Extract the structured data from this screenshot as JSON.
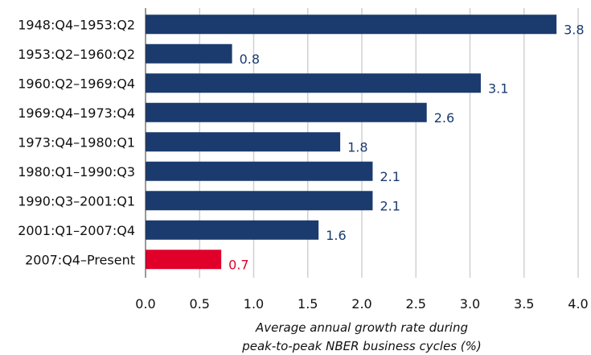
{
  "chart_data": {
    "type": "bar",
    "orientation": "horizontal",
    "categories": [
      "1948:Q4–1953:Q2",
      "1953:Q2–1960:Q2",
      "1960:Q2–1969:Q4",
      "1969:Q4–1973:Q4",
      "1973:Q4–1980:Q1",
      "1980:Q1–1990:Q3",
      "1990:Q3–2001:Q1",
      "2001:Q1–2007:Q4",
      "2007:Q4–Present"
    ],
    "values": [
      3.8,
      0.8,
      3.1,
      2.6,
      1.8,
      2.1,
      2.1,
      1.6,
      0.7
    ],
    "value_labels": [
      "3.8",
      "0.8",
      "3.1",
      "2.6",
      "1.8",
      "2.1",
      "2.1",
      "1.6",
      "0.7"
    ],
    "bar_colors": [
      "#1b3b6f",
      "#1b3b6f",
      "#1b3b6f",
      "#1b3b6f",
      "#1b3b6f",
      "#1b3b6f",
      "#1b3b6f",
      "#1b3b6f",
      "#e0002a"
    ],
    "label_colors": [
      "#1b3b6f",
      "#1b3b6f",
      "#1b3b6f",
      "#1b3b6f",
      "#1b3b6f",
      "#1b3b6f",
      "#1b3b6f",
      "#1b3b6f",
      "#e0002a"
    ],
    "xlim": [
      0,
      4.0
    ],
    "xticks": [
      "0.0",
      "0.5",
      "1.0",
      "1.5",
      "2.0",
      "2.5",
      "3.0",
      "3.5",
      "4.0"
    ],
    "xlabel_lines": [
      "Average annual growth rate during",
      "peak-to-peak NBER business cycles (%)"
    ],
    "grid": true
  }
}
